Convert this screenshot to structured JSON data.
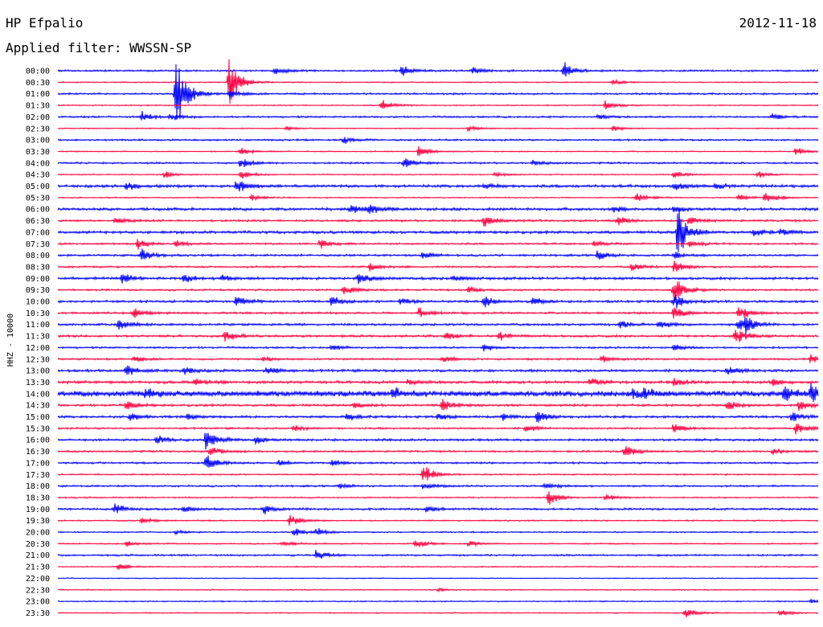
{
  "header": {
    "station": "HP Efpalio",
    "date": "2012-11-18",
    "filter": "Applied filter: WWSSN-SP"
  },
  "channel_label": "HHZ - 10000",
  "colors": {
    "odd_trace": "#0000ff",
    "even_trace": "#ff0040",
    "background": "#ffffff"
  },
  "chart_data": {
    "type": "line",
    "title": "HP Efpalio",
    "ylabel": "HHZ - 10000",
    "rows": [
      {
        "time": "00:00",
        "noise": 0.8,
        "events": [
          {
            "t": 0.285,
            "a": 5
          },
          {
            "t": 0.452,
            "a": 8
          },
          {
            "t": 0.545,
            "a": 6
          },
          {
            "t": 0.665,
            "a": 12
          }
        ]
      },
      {
        "time": "00:30",
        "noise": 0.5,
        "events": [
          {
            "t": 0.225,
            "a": 35
          },
          {
            "t": 0.73,
            "a": 4
          }
        ]
      },
      {
        "time": "01:00",
        "noise": 0.8,
        "events": [
          {
            "t": 0.155,
            "a": 60
          },
          {
            "t": 0.225,
            "a": 8
          }
        ]
      },
      {
        "time": "01:30",
        "noise": 0.5,
        "events": [
          {
            "t": 0.425,
            "a": 10
          },
          {
            "t": 0.72,
            "a": 7
          }
        ]
      },
      {
        "time": "02:00",
        "noise": 0.8,
        "events": [
          {
            "t": 0.11,
            "a": 8
          },
          {
            "t": 0.148,
            "a": 6
          },
          {
            "t": 0.71,
            "a": 4
          },
          {
            "t": 0.94,
            "a": 6
          }
        ]
      },
      {
        "time": "02:30",
        "noise": 0.5,
        "events": [
          {
            "t": 0.3,
            "a": 3
          },
          {
            "t": 0.54,
            "a": 4
          },
          {
            "t": 0.73,
            "a": 4
          }
        ]
      },
      {
        "time": "03:00",
        "noise": 0.8,
        "events": [
          {
            "t": 0.375,
            "a": 5
          }
        ]
      },
      {
        "time": "03:30",
        "noise": 0.5,
        "events": [
          {
            "t": 0.24,
            "a": 6
          },
          {
            "t": 0.475,
            "a": 10
          },
          {
            "t": 0.97,
            "a": 6
          }
        ]
      },
      {
        "time": "04:00",
        "noise": 0.8,
        "events": [
          {
            "t": 0.24,
            "a": 8
          },
          {
            "t": 0.455,
            "a": 10
          },
          {
            "t": 0.625,
            "a": 4
          }
        ]
      },
      {
        "time": "04:30",
        "noise": 0.5,
        "events": [
          {
            "t": 0.14,
            "a": 5
          },
          {
            "t": 0.24,
            "a": 8
          },
          {
            "t": 0.575,
            "a": 4
          },
          {
            "t": 0.81,
            "a": 6
          },
          {
            "t": 0.92,
            "a": 6
          }
        ]
      },
      {
        "time": "05:00",
        "noise": 1.2,
        "events": [
          {
            "t": 0.09,
            "a": 6
          },
          {
            "t": 0.235,
            "a": 12
          },
          {
            "t": 0.56,
            "a": 4
          },
          {
            "t": 0.81,
            "a": 8
          },
          {
            "t": 0.865,
            "a": 5
          }
        ]
      },
      {
        "time": "05:30",
        "noise": 0.5,
        "events": [
          {
            "t": 0.255,
            "a": 5
          },
          {
            "t": 0.76,
            "a": 7
          },
          {
            "t": 0.895,
            "a": 6
          },
          {
            "t": 0.93,
            "a": 10
          }
        ]
      },
      {
        "time": "06:00",
        "noise": 1.2,
        "events": [
          {
            "t": 0.385,
            "a": 8
          },
          {
            "t": 0.41,
            "a": 10
          },
          {
            "t": 0.73,
            "a": 5
          },
          {
            "t": 0.81,
            "a": 5
          }
        ]
      },
      {
        "time": "06:30",
        "noise": 0.9,
        "events": [
          {
            "t": 0.075,
            "a": 5
          },
          {
            "t": 0.56,
            "a": 9
          },
          {
            "t": 0.735,
            "a": 7
          },
          {
            "t": 0.83,
            "a": 6
          }
        ]
      },
      {
        "time": "07:00",
        "noise": 1.2,
        "events": [
          {
            "t": 0.815,
            "a": 40
          },
          {
            "t": 0.915,
            "a": 7
          },
          {
            "t": 0.95,
            "a": 6
          }
        ]
      },
      {
        "time": "07:30",
        "noise": 0.8,
        "events": [
          {
            "t": 0.105,
            "a": 9
          },
          {
            "t": 0.155,
            "a": 5
          },
          {
            "t": 0.345,
            "a": 8
          },
          {
            "t": 0.705,
            "a": 5
          },
          {
            "t": 0.83,
            "a": 6
          }
        ]
      },
      {
        "time": "08:00",
        "noise": 0.9,
        "events": [
          {
            "t": 0.11,
            "a": 10
          },
          {
            "t": 0.48,
            "a": 5
          },
          {
            "t": 0.71,
            "a": 8
          },
          {
            "t": 0.81,
            "a": 6
          }
        ]
      },
      {
        "time": "08:30",
        "noise": 0.8,
        "events": [
          {
            "t": 0.41,
            "a": 6
          },
          {
            "t": 0.755,
            "a": 7
          },
          {
            "t": 0.81,
            "a": 10
          }
        ]
      },
      {
        "time": "09:00",
        "noise": 1.1,
        "events": [
          {
            "t": 0.085,
            "a": 9
          },
          {
            "t": 0.165,
            "a": 7
          },
          {
            "t": 0.215,
            "a": 5
          },
          {
            "t": 0.395,
            "a": 10
          },
          {
            "t": 0.52,
            "a": 4
          }
        ]
      },
      {
        "time": "09:30",
        "noise": 0.8,
        "events": [
          {
            "t": 0.375,
            "a": 8
          },
          {
            "t": 0.54,
            "a": 6
          },
          {
            "t": 0.81,
            "a": 25
          }
        ]
      },
      {
        "time": "10:00",
        "noise": 1.0,
        "events": [
          {
            "t": 0.235,
            "a": 10
          },
          {
            "t": 0.36,
            "a": 9
          },
          {
            "t": 0.45,
            "a": 5
          },
          {
            "t": 0.56,
            "a": 8
          },
          {
            "t": 0.625,
            "a": 6
          },
          {
            "t": 0.81,
            "a": 12
          }
        ]
      },
      {
        "time": "10:30",
        "noise": 0.9,
        "events": [
          {
            "t": 0.1,
            "a": 8
          },
          {
            "t": 0.475,
            "a": 7
          },
          {
            "t": 0.81,
            "a": 12
          },
          {
            "t": 0.895,
            "a": 12
          }
        ]
      },
      {
        "time": "11:00",
        "noise": 1.0,
        "events": [
          {
            "t": 0.08,
            "a": 10
          },
          {
            "t": 0.74,
            "a": 6
          },
          {
            "t": 0.79,
            "a": 6
          },
          {
            "t": 0.895,
            "a": 10
          },
          {
            "t": 0.905,
            "a": 9
          }
        ]
      },
      {
        "time": "11:30",
        "noise": 1.0,
        "events": [
          {
            "t": 0.22,
            "a": 10
          },
          {
            "t": 0.51,
            "a": 5
          },
          {
            "t": 0.58,
            "a": 6
          },
          {
            "t": 0.89,
            "a": 14
          }
        ]
      },
      {
        "time": "12:00",
        "noise": 0.8,
        "events": [
          {
            "t": 0.36,
            "a": 4
          },
          {
            "t": 0.56,
            "a": 6
          },
          {
            "t": 0.81,
            "a": 5
          }
        ]
      },
      {
        "time": "12:30",
        "noise": 0.8,
        "events": [
          {
            "t": 0.1,
            "a": 5
          },
          {
            "t": 0.27,
            "a": 4
          },
          {
            "t": 0.505,
            "a": 5
          },
          {
            "t": 0.715,
            "a": 6
          },
          {
            "t": 0.99,
            "a": 6
          }
        ]
      },
      {
        "time": "13:00",
        "noise": 1.1,
        "events": [
          {
            "t": 0.09,
            "a": 9
          },
          {
            "t": 0.165,
            "a": 6
          },
          {
            "t": 0.275,
            "a": 7
          },
          {
            "t": 0.88,
            "a": 8
          }
        ]
      },
      {
        "time": "13:30",
        "noise": 1.2,
        "events": [
          {
            "t": 0.18,
            "a": 5
          },
          {
            "t": 0.46,
            "a": 5
          },
          {
            "t": 0.7,
            "a": 5
          },
          {
            "t": 0.81,
            "a": 6
          },
          {
            "t": 0.94,
            "a": 5
          }
        ]
      },
      {
        "time": "14:00",
        "noise": 2.4,
        "events": [
          {
            "t": 0.115,
            "a": 9
          },
          {
            "t": 0.44,
            "a": 8
          },
          {
            "t": 0.755,
            "a": 7
          },
          {
            "t": 0.77,
            "a": 8
          },
          {
            "t": 0.955,
            "a": 12
          },
          {
            "t": 0.99,
            "a": 14
          }
        ]
      },
      {
        "time": "14:30",
        "noise": 1.0,
        "events": [
          {
            "t": 0.09,
            "a": 7
          },
          {
            "t": 0.39,
            "a": 5
          },
          {
            "t": 0.505,
            "a": 10
          },
          {
            "t": 0.88,
            "a": 8
          },
          {
            "t": 0.975,
            "a": 9
          }
        ]
      },
      {
        "time": "15:00",
        "noise": 1.0,
        "events": [
          {
            "t": 0.095,
            "a": 6
          },
          {
            "t": 0.17,
            "a": 5
          },
          {
            "t": 0.38,
            "a": 7
          },
          {
            "t": 0.5,
            "a": 6
          },
          {
            "t": 0.585,
            "a": 5
          },
          {
            "t": 0.63,
            "a": 9
          },
          {
            "t": 0.965,
            "a": 8
          }
        ]
      },
      {
        "time": "15:30",
        "noise": 0.8,
        "events": [
          {
            "t": 0.31,
            "a": 5
          },
          {
            "t": 0.615,
            "a": 6
          },
          {
            "t": 0.81,
            "a": 8
          },
          {
            "t": 0.97,
            "a": 9
          }
        ]
      },
      {
        "time": "16:00",
        "noise": 1.0,
        "events": [
          {
            "t": 0.13,
            "a": 7
          },
          {
            "t": 0.195,
            "a": 20
          },
          {
            "t": 0.26,
            "a": 6
          }
        ]
      },
      {
        "time": "16:30",
        "noise": 0.8,
        "events": [
          {
            "t": 0.2,
            "a": 8
          },
          {
            "t": 0.745,
            "a": 12
          },
          {
            "t": 0.94,
            "a": 5
          }
        ]
      },
      {
        "time": "17:00",
        "noise": 0.8,
        "events": [
          {
            "t": 0.195,
            "a": 14
          },
          {
            "t": 0.29,
            "a": 5
          },
          {
            "t": 0.36,
            "a": 5
          }
        ]
      },
      {
        "time": "17:30",
        "noise": 0.6,
        "events": [
          {
            "t": 0.48,
            "a": 16
          }
        ]
      },
      {
        "time": "18:00",
        "noise": 0.8,
        "events": [
          {
            "t": 0.37,
            "a": 4
          },
          {
            "t": 0.48,
            "a": 6
          },
          {
            "t": 0.64,
            "a": 6
          }
        ]
      },
      {
        "time": "18:30",
        "noise": 0.6,
        "events": [
          {
            "t": 0.645,
            "a": 12
          },
          {
            "t": 0.72,
            "a": 5
          }
        ]
      },
      {
        "time": "19:00",
        "noise": 0.9,
        "events": [
          {
            "t": 0.075,
            "a": 8
          },
          {
            "t": 0.165,
            "a": 5
          },
          {
            "t": 0.27,
            "a": 7
          },
          {
            "t": 0.485,
            "a": 5
          }
        ]
      },
      {
        "time": "19:30",
        "noise": 0.6,
        "events": [
          {
            "t": 0.11,
            "a": 5
          },
          {
            "t": 0.305,
            "a": 9
          }
        ]
      },
      {
        "time": "20:00",
        "noise": 0.6,
        "events": [
          {
            "t": 0.155,
            "a": 3
          },
          {
            "t": 0.31,
            "a": 6
          },
          {
            "t": 0.34,
            "a": 7
          }
        ]
      },
      {
        "time": "20:30",
        "noise": 0.6,
        "events": [
          {
            "t": 0.09,
            "a": 4
          },
          {
            "t": 0.295,
            "a": 5
          },
          {
            "t": 0.47,
            "a": 8
          },
          {
            "t": 0.54,
            "a": 4
          }
        ]
      },
      {
        "time": "21:00",
        "noise": 0.8,
        "events": [
          {
            "t": 0.34,
            "a": 9
          }
        ]
      },
      {
        "time": "21:30",
        "noise": 0.5,
        "events": [
          {
            "t": 0.08,
            "a": 6
          }
        ]
      },
      {
        "time": "22:00",
        "noise": 0.4,
        "events": []
      },
      {
        "time": "22:30",
        "noise": 0.5,
        "events": [
          {
            "t": 0.5,
            "a": 2
          }
        ]
      },
      {
        "time": "23:00",
        "noise": 0.5,
        "events": [
          {
            "t": 0.99,
            "a": 3
          }
        ]
      },
      {
        "time": "23:30",
        "noise": 0.5,
        "events": [
          {
            "t": 0.825,
            "a": 12
          },
          {
            "t": 0.95,
            "a": 5
          }
        ]
      }
    ]
  }
}
